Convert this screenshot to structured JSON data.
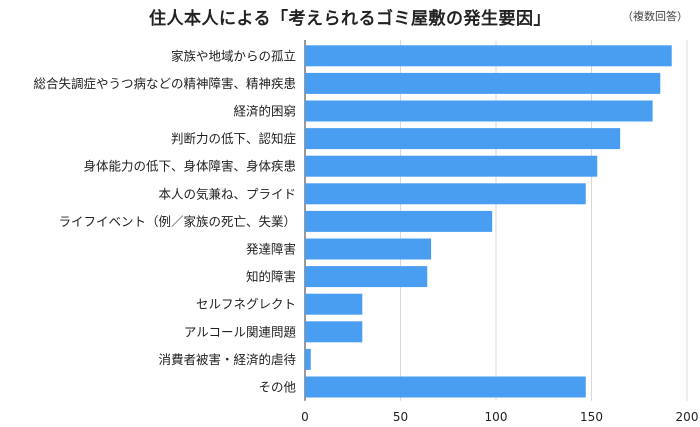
{
  "chart_data": {
    "type": "bar",
    "orientation": "horizontal",
    "title": "住人本人による「考えられるゴミ屋敷の発生要因」",
    "note": "（複数回答）",
    "categories": [
      "家族や地域からの孤立",
      "総合失調症やうつ病などの精神障害、精神疾患",
      "経済的困窮",
      "判断力の低下、認知症",
      "身体能力の低下、身体障害、身体疾患",
      "本人の気兼ね、プライド",
      "ライフイベント（例／家族の死亡、失業）",
      "発達障害",
      "知的障害",
      "セルフネグレクト",
      "アルコール関連問題",
      "消費者被害・経済的虐待",
      "その他"
    ],
    "values": [
      192,
      186,
      182,
      165,
      153,
      147,
      98,
      66,
      64,
      30,
      30,
      3,
      147
    ],
    "xlim": [
      0,
      200
    ],
    "xticks": [
      0,
      50,
      100,
      150,
      200
    ],
    "grid": true,
    "bar_color": "#4a9ef1"
  }
}
